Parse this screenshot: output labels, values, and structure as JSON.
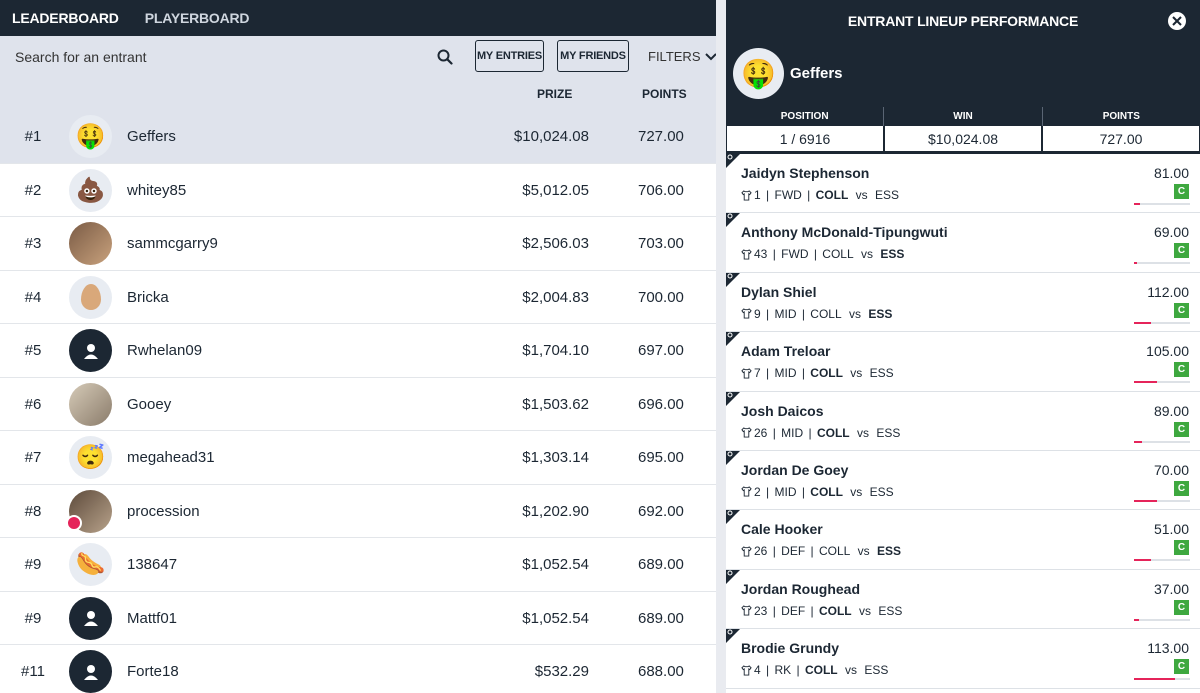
{
  "nav": {
    "tabs": [
      "LEADERBOARD",
      "PLAYERBOARD"
    ]
  },
  "search": {
    "placeholder": "Search for an entrant"
  },
  "buttons": {
    "my_entries": "MY ENTRIES",
    "my_friends": "MY FRIENDS",
    "filters": "FILTERS"
  },
  "columns": {
    "prize": "PRIZE",
    "points": "POINTS"
  },
  "leaderboard": [
    {
      "rank": "#1",
      "name": "Geffers",
      "prize": "$10,024.08",
      "points": "727.00",
      "avatar": "money-face-emoji"
    },
    {
      "rank": "#2",
      "name": "whitey85",
      "prize": "$5,012.05",
      "points": "706.00",
      "avatar": "poop-emoji"
    },
    {
      "rank": "#3",
      "name": "sammcgarry9",
      "prize": "$2,506.03",
      "points": "703.00",
      "avatar": "photo"
    },
    {
      "rank": "#4",
      "name": "Bricka",
      "prize": "$2,004.83",
      "points": "700.00",
      "avatar": "egg"
    },
    {
      "rank": "#5",
      "name": "Rwhelan09",
      "prize": "$1,704.10",
      "points": "697.00",
      "avatar": "default-user-icon"
    },
    {
      "rank": "#6",
      "name": "Gooey",
      "prize": "$1,503.62",
      "points": "696.00",
      "avatar": "photo"
    },
    {
      "rank": "#7",
      "name": "megahead31",
      "prize": "$1,303.14",
      "points": "695.00",
      "avatar": "sleeping-face-emoji"
    },
    {
      "rank": "#8",
      "name": "procession",
      "prize": "$1,202.90",
      "points": "692.00",
      "avatar": "photo"
    },
    {
      "rank": "#9",
      "name": "138647",
      "prize": "$1,052.54",
      "points": "689.00",
      "avatar": "hotdog-emoji"
    },
    {
      "rank": "#9",
      "name": "Mattf01",
      "prize": "$1,052.54",
      "points": "689.00",
      "avatar": "default-user-icon"
    },
    {
      "rank": "#11",
      "name": "Forte18",
      "prize": "$532.29",
      "points": "688.00",
      "avatar": "default-user-icon"
    }
  ],
  "panel": {
    "title": "ENTRANT LINEUP PERFORMANCE",
    "entrant": "Geffers",
    "stat_labels": [
      "POSITION",
      "WIN",
      "POINTS"
    ],
    "stat_values": [
      "1 / 6916",
      "$10,024.08",
      "727.00"
    ],
    "players": [
      {
        "name": "Jaidyn Stephenson",
        "num": "1",
        "pos": "FWD",
        "home": "COLL",
        "vs": "vs",
        "away": "ESS",
        "points": "81.00",
        "c": "C",
        "progress": 0.11,
        "bold_team": "home"
      },
      {
        "name": "Anthony McDonald-Tipungwuti",
        "num": "43",
        "pos": "FWD",
        "home": "COLL",
        "vs": "vs",
        "away": "ESS",
        "points": "69.00",
        "c": "C",
        "progress": 0.06,
        "bold_team": "away"
      },
      {
        "name": "Dylan Shiel",
        "num": "9",
        "pos": "MID",
        "home": "COLL",
        "vs": "vs",
        "away": "ESS",
        "points": "112.00",
        "c": "C",
        "progress": 0.3,
        "bold_team": "away"
      },
      {
        "name": "Adam Treloar",
        "num": "7",
        "pos": "MID",
        "home": "COLL",
        "vs": "vs",
        "away": "ESS",
        "points": "105.00",
        "c": "C",
        "progress": 0.41,
        "bold_team": "home"
      },
      {
        "name": "Josh Daicos",
        "num": "26",
        "pos": "MID",
        "home": "COLL",
        "vs": "vs",
        "away": "ESS",
        "points": "89.00",
        "c": "C",
        "progress": 0.14,
        "bold_team": "home"
      },
      {
        "name": "Jordan De Goey",
        "num": "2",
        "pos": "MID",
        "home": "COLL",
        "vs": "vs",
        "away": "ESS",
        "points": "70.00",
        "c": "C",
        "progress": 0.41,
        "bold_team": "home"
      },
      {
        "name": "Cale Hooker",
        "num": "26",
        "pos": "DEF",
        "home": "COLL",
        "vs": "vs",
        "away": "ESS",
        "points": "51.00",
        "c": "C",
        "progress": 0.3,
        "bold_team": "away"
      },
      {
        "name": "Jordan Roughead",
        "num": "23",
        "pos": "DEF",
        "home": "COLL",
        "vs": "vs",
        "away": "ESS",
        "points": "37.00",
        "c": "C",
        "progress": 0.09,
        "bold_team": "home"
      },
      {
        "name": "Brodie Grundy",
        "num": "4",
        "pos": "RK",
        "home": "COLL",
        "vs": "vs",
        "away": "ESS",
        "points": "113.00",
        "c": "C",
        "progress": 0.73,
        "bold_team": "home"
      }
    ]
  },
  "colors": {
    "navy": "#1c2733",
    "highlight": "#dfe3ec",
    "green": "#3ea83f",
    "pink": "#e5245a"
  }
}
